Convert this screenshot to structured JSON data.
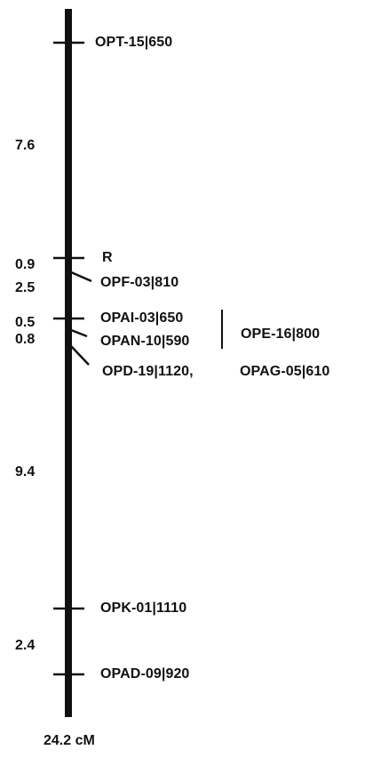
{
  "map": {
    "total_length": "24.2 cM",
    "markers": [
      {
        "name": "OPT-15|650"
      },
      {
        "name": "R"
      },
      {
        "name": "OPF-03|810"
      },
      {
        "name": "OPAI-03|650"
      },
      {
        "name": "OPAN-10|590"
      },
      {
        "name": "OPE-16|800"
      },
      {
        "name": "OPD-19|1120,"
      },
      {
        "name": "OPAG-05|610"
      },
      {
        "name": "OPK-01|1110"
      },
      {
        "name": "OPAD-09|920"
      }
    ],
    "distances": [
      {
        "value": "7.6"
      },
      {
        "value": "0.9"
      },
      {
        "value": "2.5"
      },
      {
        "value": "0.5"
      },
      {
        "value": "0.8"
      },
      {
        "value": "9.4"
      },
      {
        "value": "2.4"
      }
    ]
  }
}
